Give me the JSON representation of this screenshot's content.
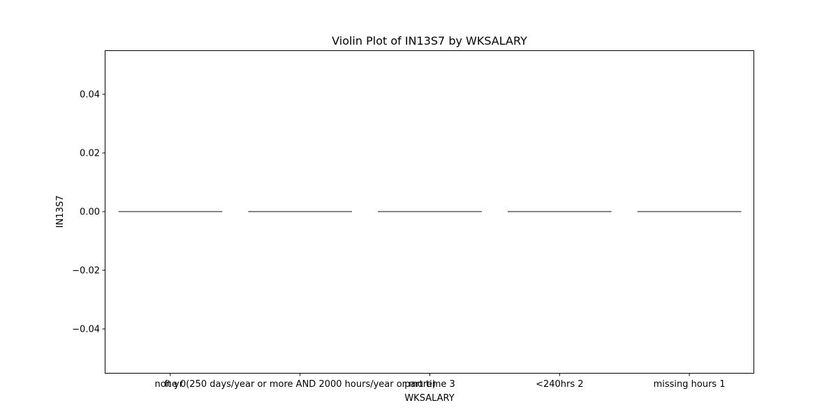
{
  "chart_data": {
    "type": "violin",
    "title": "Violin Plot of IN13S7 by WKSALARY",
    "xlabel": "WKSALARY",
    "ylabel": "IN13S7",
    "categories": [
      "none 0",
      "ft yr (250 days/year or more AND 2000 hours/year or more)",
      "part time 3",
      "<240hrs 2",
      "missing hours 1"
    ],
    "values": [
      0,
      0,
      0,
      0,
      0
    ],
    "ylim": [
      -0.055,
      0.055
    ],
    "yticks": [
      -0.04,
      -0.02,
      0.0,
      0.02,
      0.04
    ],
    "ytick_labels": [
      "−0.04",
      "−0.02",
      "0.00",
      "0.02",
      "0.04"
    ],
    "grid": false,
    "line_color": "#3f3f3f"
  }
}
